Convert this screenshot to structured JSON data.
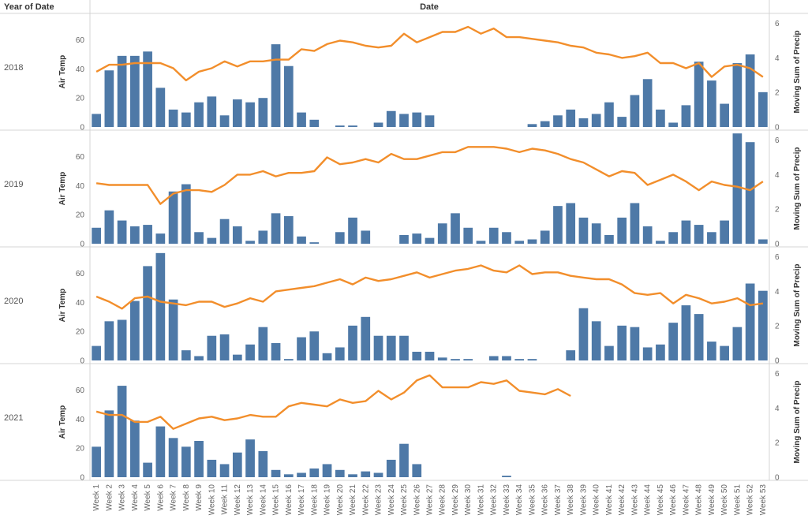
{
  "header": {
    "row_dimension": "Year of Date",
    "column_dimension": "Date"
  },
  "chart_data": {
    "type": "combo bar + line (dual axis, small multiples)",
    "left_axis_label": "Air Temp",
    "right_axis_label": "Moving Sum of Precip",
    "left_ticks": [
      0,
      20,
      40,
      60
    ],
    "right_ticks": [
      0,
      2,
      4,
      6
    ],
    "left_range": [
      0,
      75
    ],
    "right_range": [
      0,
      6.3
    ],
    "bar_color": "#4e79a7",
    "line_color": "#f28e2b",
    "categories": [
      "Week 1",
      "Week 2",
      "Week 3",
      "Week 4",
      "Week 5",
      "Week 6",
      "Week 7",
      "Week 8",
      "Week 9",
      "Week 10",
      "Week 11",
      "Week 12",
      "Week 13",
      "Week 14",
      "Week 15",
      "Week 16",
      "Week 17",
      "Week 18",
      "Week 19",
      "Week 20",
      "Week 21",
      "Week 22",
      "Week 23",
      "Week 24",
      "Week 25",
      "Week 26",
      "Week 27",
      "Week 28",
      "Week 29",
      "Week 30",
      "Week 31",
      "Week 32",
      "Week 33",
      "Week 34",
      "Week 35",
      "Week 36",
      "Week 37",
      "Week 38",
      "Week 39",
      "Week 40",
      "Week 41",
      "Week 42",
      "Week 43",
      "Week 44",
      "Week 45",
      "Week 46",
      "Week 47",
      "Week 48",
      "Week 49",
      "Week 50",
      "Week 51",
      "Week 52",
      "Week 53"
    ],
    "panels": [
      {
        "year": "2018",
        "bars": [
          9,
          39,
          49,
          49,
          52,
          27,
          12,
          10,
          17,
          21,
          8,
          19,
          17,
          20,
          57,
          42,
          10,
          5,
          0,
          1,
          1,
          0,
          3,
          11,
          9,
          10,
          8,
          0,
          0,
          0,
          0,
          0,
          0,
          0,
          2,
          4,
          8,
          12,
          6,
          9,
          17,
          7,
          22,
          33,
          12,
          3,
          15,
          45,
          32,
          16,
          44,
          50,
          24
        ],
        "line": [
          3.2,
          3.6,
          3.6,
          3.7,
          3.7,
          3.7,
          3.4,
          2.7,
          3.2,
          3.4,
          3.8,
          3.5,
          3.8,
          3.8,
          3.9,
          3.9,
          4.5,
          4.4,
          4.8,
          5.0,
          4.9,
          4.7,
          4.6,
          4.7,
          5.4,
          4.9,
          5.2,
          5.5,
          5.5,
          5.8,
          5.4,
          5.7,
          5.2,
          5.2,
          5.1,
          5.0,
          4.9,
          4.7,
          4.6,
          4.3,
          4.2,
          4.0,
          4.1,
          4.3,
          3.7,
          3.7,
          3.4,
          3.7,
          2.9,
          3.5,
          3.6,
          3.4,
          2.9
        ]
      },
      {
        "year": "2019",
        "bars": [
          11,
          23,
          16,
          12,
          13,
          7,
          36,
          41,
          8,
          4,
          17,
          12,
          2,
          9,
          21,
          19,
          5,
          1,
          0,
          8,
          18,
          9,
          0,
          0,
          6,
          7,
          4,
          14,
          21,
          11,
          2,
          11,
          8,
          2,
          3,
          9,
          26,
          28,
          18,
          14,
          6,
          18,
          28,
          12,
          2,
          8,
          16,
          13,
          8,
          16,
          76,
          70,
          3
        ],
        "line": [
          3.5,
          3.4,
          3.4,
          3.4,
          3.4,
          2.3,
          2.9,
          3.1,
          3.1,
          3.0,
          3.4,
          4.0,
          4.0,
          4.2,
          3.9,
          4.1,
          4.1,
          4.2,
          5.0,
          4.6,
          4.7,
          4.9,
          4.7,
          5.2,
          4.9,
          4.9,
          5.1,
          5.3,
          5.3,
          5.6,
          5.6,
          5.6,
          5.5,
          5.3,
          5.5,
          5.4,
          5.2,
          4.9,
          4.7,
          4.3,
          3.9,
          4.2,
          4.1,
          3.4,
          3.7,
          4.0,
          3.6,
          3.1,
          3.6,
          3.4,
          3.3,
          3.1,
          3.6
        ]
      },
      {
        "year": "2020",
        "bars": [
          10,
          27,
          28,
          41,
          65,
          74,
          42,
          7,
          3,
          17,
          18,
          4,
          11,
          23,
          12,
          1,
          16,
          20,
          5,
          9,
          24,
          30,
          17,
          17,
          17,
          6,
          6,
          2,
          1,
          1,
          0,
          3,
          3,
          1,
          1,
          0,
          0,
          7,
          36,
          27,
          10,
          24,
          23,
          9,
          11,
          26,
          38,
          32,
          13,
          10,
          23,
          53,
          48
        ],
        "line": [
          3.7,
          3.4,
          3.0,
          3.6,
          3.7,
          3.4,
          3.3,
          3.2,
          3.4,
          3.4,
          3.1,
          3.3,
          3.6,
          3.4,
          4.0,
          4.1,
          4.2,
          4.3,
          4.5,
          4.7,
          4.4,
          4.8,
          4.6,
          4.7,
          4.9,
          5.1,
          4.8,
          5.0,
          5.2,
          5.3,
          5.5,
          5.2,
          5.1,
          5.5,
          5.0,
          5.1,
          5.1,
          4.9,
          4.8,
          4.7,
          4.7,
          4.4,
          3.9,
          3.8,
          3.9,
          3.3,
          3.8,
          3.6,
          3.3,
          3.4,
          3.6,
          3.2,
          3.3
        ]
      },
      {
        "year": "2021",
        "bars": [
          21,
          46,
          63,
          39,
          10,
          35,
          27,
          21,
          25,
          12,
          9,
          17,
          26,
          18,
          5,
          2,
          3,
          6,
          9,
          5,
          2,
          4,
          3,
          12,
          23,
          9,
          0,
          0,
          0,
          0,
          0,
          0,
          1,
          0,
          0,
          0,
          0,
          0
        ],
        "line": [
          3.8,
          3.6,
          3.6,
          3.2,
          3.2,
          3.5,
          2.8,
          3.1,
          3.4,
          3.5,
          3.3,
          3.4,
          3.6,
          3.5,
          3.5,
          4.1,
          4.3,
          4.2,
          4.1,
          4.5,
          4.3,
          4.4,
          5.0,
          4.5,
          4.9,
          5.6,
          5.9,
          5.2,
          5.2,
          5.2,
          5.5,
          5.4,
          5.6,
          5.0,
          4.9,
          4.8,
          5.1,
          4.7
        ]
      }
    ]
  }
}
